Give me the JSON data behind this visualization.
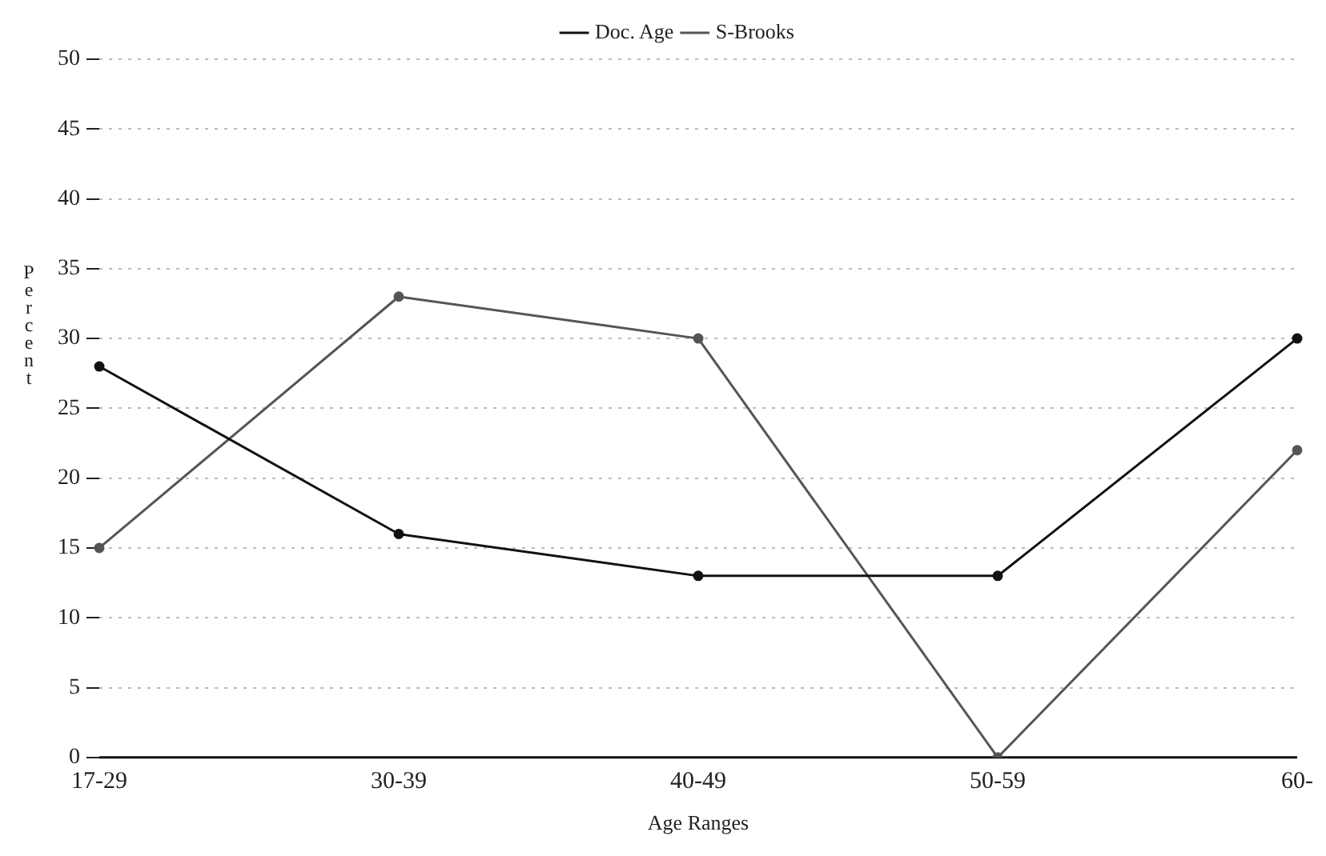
{
  "chart_data": {
    "type": "line",
    "xlabel": "Age Ranges",
    "ylabel": "Percent",
    "categories": [
      "17-29",
      "30-39",
      "40-49",
      "50-59",
      "60-"
    ],
    "series": [
      {
        "name": "Doc. Age",
        "color": "#111111",
        "values": [
          28,
          16,
          13,
          13,
          30
        ]
      },
      {
        "name": "S-Brooks",
        "color": "#555555",
        "values": [
          15,
          33,
          30,
          0,
          22
        ]
      }
    ],
    "ylim": [
      0,
      50
    ],
    "yticks": [
      0,
      5,
      10,
      15,
      20,
      25,
      30,
      35,
      40,
      45,
      50
    ],
    "grid": "y",
    "legend": "top",
    "marker": "circle",
    "line_style": "solid"
  }
}
